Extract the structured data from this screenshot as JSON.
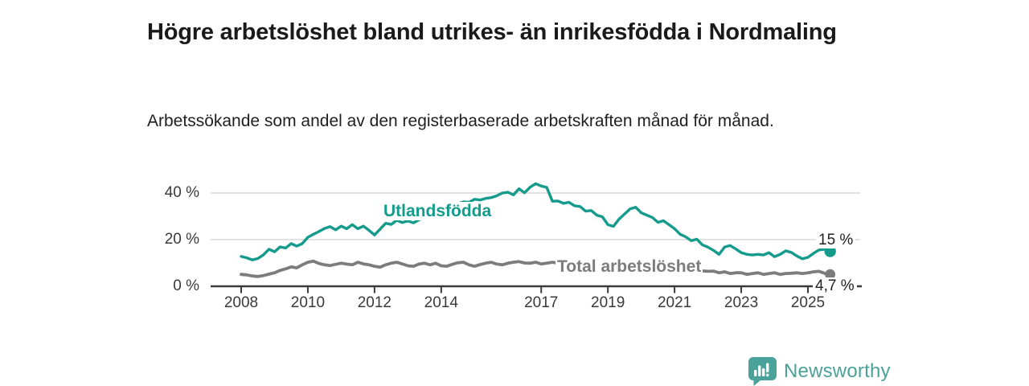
{
  "header": {
    "title": "Högre arbetslöshet bland utrikes- än inrikesfödda i Nordmaling",
    "subtitle": "Arbetssökande som andel av den registerbaserade arbetskraften månad för månad."
  },
  "branding": {
    "name": "Newsworthy",
    "logo_icon": "speech-bubble-bar-chart-icon"
  },
  "colors": {
    "foreign_line": "#149b8b",
    "total_line": "#7c7c7c",
    "axis": "#3b3b3b",
    "grid": "#d9d9d9",
    "title_text": "#1a1a1a",
    "tick_text": "#3a3a3a",
    "end_label_text": "#222222",
    "brand": "#4aa29b",
    "background": "#ffffff"
  },
  "chart_data": {
    "type": "line",
    "title": "Högre arbetslöshet bland utrikes- än inrikesfödda i Nordmaling",
    "unit": "%",
    "x_start": 2008.0,
    "x_step_years": 0.16667,
    "x_end": 2025.67,
    "x_ticks": [
      2008,
      2010,
      2012,
      2014,
      2017,
      2019,
      2021,
      2023,
      2025
    ],
    "y_ticks": [
      {
        "value": 0,
        "label": "0 %"
      },
      {
        "value": 20,
        "label": "20 %"
      },
      {
        "value": 40,
        "label": "40 %"
      }
    ],
    "ylim": [
      0,
      47
    ],
    "grid": "horizontal",
    "legend_position": "inline-labels",
    "series": [
      {
        "name": "Utlandsfödda",
        "color": "#149b8b",
        "end_label": "15 %",
        "last_value": 15,
        "values": [
          12.8,
          12.2,
          11.3,
          11.9,
          13.5,
          15.9,
          14.8,
          16.9,
          16.4,
          18.3,
          17.2,
          18.3,
          21.0,
          22.3,
          23.5,
          24.8,
          25.6,
          24.2,
          25.8,
          24.7,
          26.4,
          24.7,
          25.8,
          24.0,
          22.0,
          24.5,
          27.0,
          26.5,
          28.3,
          27.3,
          28.0,
          27.2,
          28.5,
          29.5,
          30.5,
          31.0,
          32.0,
          33.0,
          34.0,
          35.5,
          36.2,
          36.0,
          37.3,
          37.0,
          37.7,
          38.0,
          38.8,
          40.0,
          40.3,
          39.2,
          41.8,
          40.1,
          42.5,
          44.0,
          43.0,
          42.4,
          36.5,
          36.6,
          35.6,
          36.0,
          34.5,
          34.2,
          32.2,
          32.5,
          30.5,
          29.8,
          26.4,
          25.7,
          28.8,
          31.0,
          33.2,
          33.9,
          31.5,
          30.5,
          29.5,
          27.4,
          28.1,
          26.4,
          24.7,
          22.3,
          21.2,
          19.5,
          20.2,
          17.8,
          16.8,
          15.4,
          13.7,
          16.8,
          17.5,
          16.0,
          14.4,
          13.7,
          13.4,
          13.7,
          13.4,
          14.4,
          12.7,
          13.7,
          15.2,
          14.5,
          13.0,
          11.8,
          12.4,
          14.1,
          15.6,
          15.9,
          15.0
        ]
      },
      {
        "name": "Total arbetslöshet",
        "color": "#7c7c7c",
        "end_label": "4,7 %",
        "last_value": 4.7,
        "values": [
          5.1,
          4.9,
          4.4,
          4.2,
          4.6,
          5.2,
          5.8,
          6.8,
          7.5,
          8.3,
          7.9,
          9.2,
          10.3,
          10.8,
          9.8,
          9.2,
          8.9,
          9.4,
          9.9,
          9.5,
          9.2,
          10.3,
          9.6,
          9.2,
          8.6,
          8.2,
          9.2,
          9.9,
          10.3,
          9.6,
          8.8,
          8.6,
          9.5,
          9.9,
          9.2,
          9.9,
          8.8,
          8.6,
          9.4,
          10.1,
          10.3,
          9.2,
          8.6,
          9.3,
          9.9,
          10.3,
          9.5,
          9.2,
          9.9,
          10.3,
          10.6,
          10.0,
          9.9,
          10.3,
          9.6,
          9.9,
          10.3,
          9.9,
          9.5,
          9.2,
          9.0,
          8.8,
          9.2,
          9.4,
          9.0,
          8.8,
          8.6,
          8.9,
          9.2,
          9.0,
          8.8,
          9.0,
          8.8,
          9.2,
          9.6,
          9.4,
          9.0,
          8.6,
          8.2,
          7.9,
          7.5,
          7.2,
          6.9,
          6.6,
          6.4,
          6.5,
          5.8,
          6.2,
          5.5,
          5.8,
          5.8,
          5.1,
          5.5,
          5.8,
          5.1,
          5.5,
          5.8,
          5.1,
          5.5,
          5.6,
          5.8,
          5.5,
          5.8,
          6.2,
          6.4,
          5.6,
          4.7
        ]
      }
    ]
  }
}
